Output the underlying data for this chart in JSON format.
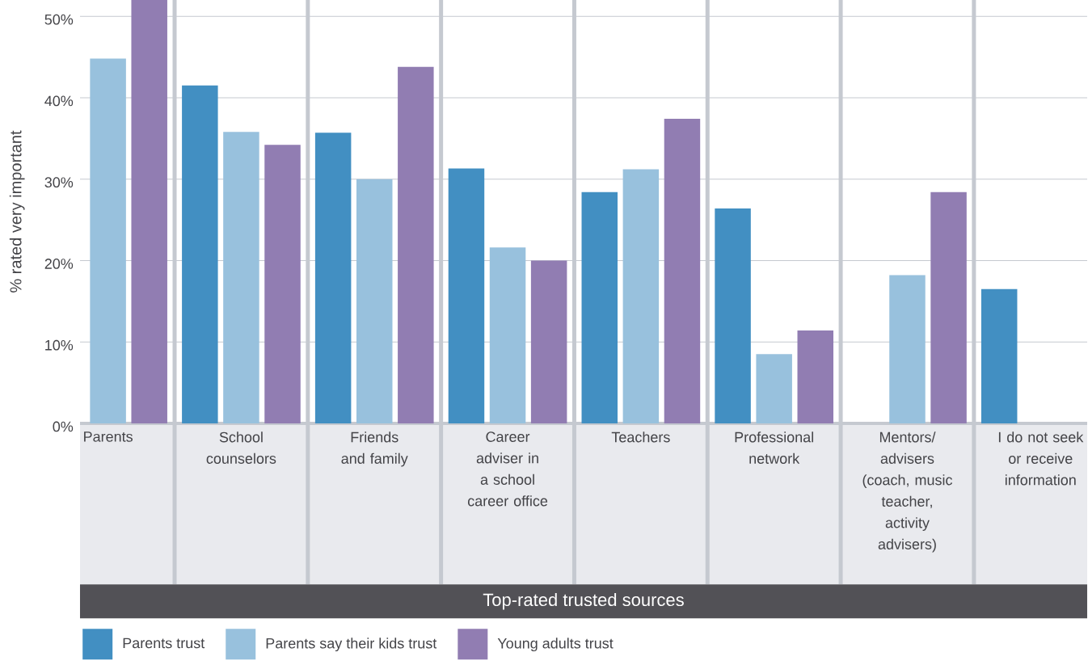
{
  "chart_data": {
    "type": "bar",
    "xlabel": "Top-rated trusted sources",
    "ylabel": "% rated very important",
    "categories": [
      "Parents",
      "School counselors",
      "Friends and family",
      "Career adviser in a school career office",
      "Teachers",
      "Professional network",
      "Mentors/ advisers (coach, music teacher, activity advisers)",
      "I do not seek or receive information"
    ],
    "series": [
      {
        "name": "Parents trust",
        "color": "#428fc2",
        "values": [
          null,
          41.5,
          35.7,
          31.3,
          28.4,
          26.4,
          null,
          16.5
        ]
      },
      {
        "name": "Parents say their kids trust",
        "color": "#98c1dd",
        "values": [
          44.8,
          35.8,
          30.0,
          21.6,
          31.2,
          8.5,
          18.2,
          null
        ]
      },
      {
        "name": "Young adults trust",
        "color": "#917db2",
        "values": [
          52,
          34.2,
          43.8,
          20.0,
          37.4,
          11.4,
          28.4,
          null
        ]
      }
    ],
    "ylim": [
      0,
      52
    ],
    "yticks": [
      {
        "value": 0,
        "label": "0%"
      },
      {
        "value": 10,
        "label": "10%"
      },
      {
        "value": 20,
        "label": "20%"
      },
      {
        "value": 30,
        "label": "30%"
      },
      {
        "value": 40,
        "label": "40%"
      },
      {
        "value": 50,
        "label": "50%"
      }
    ],
    "grid": "y",
    "legend": "bottom left"
  }
}
